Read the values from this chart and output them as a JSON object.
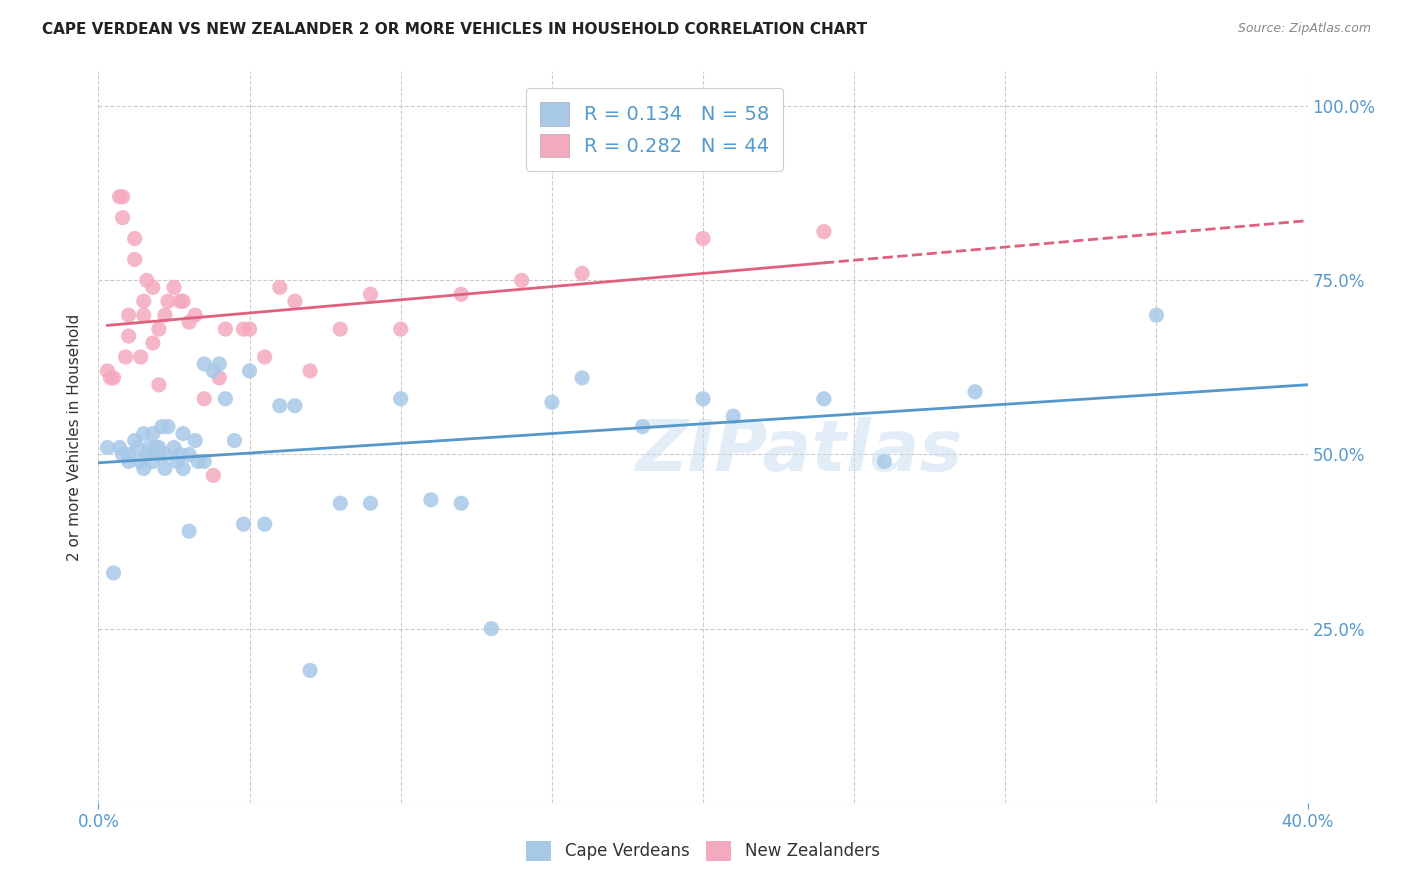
{
  "title": "CAPE VERDEAN VS NEW ZEALANDER 2 OR MORE VEHICLES IN HOUSEHOLD CORRELATION CHART",
  "source": "Source: ZipAtlas.com",
  "ylabel": "2 or more Vehicles in Household",
  "xmin": 0.0,
  "xmax": 0.4,
  "ymin": 0.0,
  "ymax": 1.05,
  "legend_label_blue": "Cape Verdeans",
  "legend_label_pink": "New Zealanders",
  "R_blue": 0.134,
  "N_blue": 58,
  "R_pink": 0.282,
  "N_pink": 44,
  "blue_color": "#A8C8E8",
  "pink_color": "#F4AABE",
  "blue_line_color": "#5599CC",
  "pink_line_color": "#E06080",
  "grid_color": "#CCCCCC",
  "watermark": "ZIPatlas",
  "blue_scatter_x": [
    0.003,
    0.005,
    0.007,
    0.008,
    0.01,
    0.01,
    0.012,
    0.013,
    0.014,
    0.015,
    0.015,
    0.016,
    0.017,
    0.018,
    0.018,
    0.019,
    0.02,
    0.02,
    0.021,
    0.022,
    0.022,
    0.023,
    0.025,
    0.026,
    0.027,
    0.028,
    0.028,
    0.03,
    0.03,
    0.032,
    0.033,
    0.035,
    0.035,
    0.038,
    0.04,
    0.042,
    0.045,
    0.048,
    0.05,
    0.055,
    0.06,
    0.065,
    0.07,
    0.08,
    0.09,
    0.1,
    0.11,
    0.12,
    0.13,
    0.15,
    0.16,
    0.18,
    0.2,
    0.21,
    0.24,
    0.26,
    0.29,
    0.35
  ],
  "blue_scatter_y": [
    0.51,
    0.33,
    0.51,
    0.5,
    0.49,
    0.5,
    0.52,
    0.51,
    0.49,
    0.53,
    0.48,
    0.5,
    0.51,
    0.53,
    0.49,
    0.51,
    0.5,
    0.51,
    0.54,
    0.5,
    0.48,
    0.54,
    0.51,
    0.49,
    0.5,
    0.53,
    0.48,
    0.5,
    0.39,
    0.52,
    0.49,
    0.63,
    0.49,
    0.62,
    0.63,
    0.58,
    0.52,
    0.4,
    0.62,
    0.4,
    0.57,
    0.57,
    0.19,
    0.43,
    0.43,
    0.58,
    0.435,
    0.43,
    0.25,
    0.575,
    0.61,
    0.54,
    0.58,
    0.555,
    0.58,
    0.49,
    0.59,
    0.7
  ],
  "pink_scatter_x": [
    0.003,
    0.004,
    0.005,
    0.007,
    0.008,
    0.008,
    0.009,
    0.01,
    0.01,
    0.012,
    0.012,
    0.014,
    0.015,
    0.015,
    0.016,
    0.018,
    0.018,
    0.02,
    0.02,
    0.022,
    0.023,
    0.025,
    0.027,
    0.028,
    0.03,
    0.032,
    0.035,
    0.038,
    0.04,
    0.042,
    0.048,
    0.05,
    0.055,
    0.06,
    0.065,
    0.07,
    0.08,
    0.09,
    0.1,
    0.12,
    0.14,
    0.16,
    0.2,
    0.24
  ],
  "pink_scatter_y": [
    0.62,
    0.61,
    0.61,
    0.87,
    0.87,
    0.84,
    0.64,
    0.7,
    0.67,
    0.81,
    0.78,
    0.64,
    0.72,
    0.7,
    0.75,
    0.74,
    0.66,
    0.68,
    0.6,
    0.7,
    0.72,
    0.74,
    0.72,
    0.72,
    0.69,
    0.7,
    0.58,
    0.47,
    0.61,
    0.68,
    0.68,
    0.68,
    0.64,
    0.74,
    0.72,
    0.62,
    0.68,
    0.73,
    0.68,
    0.73,
    0.75,
    0.76,
    0.81,
    0.82
  ]
}
